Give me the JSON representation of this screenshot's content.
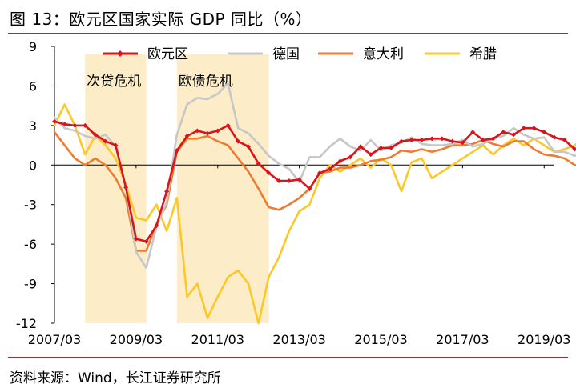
{
  "figure_title": "图 13：欧元区国家实际 GDP 同比（%）",
  "source_note": "资料来源：Wind，长江证券研究所",
  "colors": {
    "rule": "#c9201f",
    "shade": "#fdecc8",
    "eurozone": "#d9141b",
    "germany": "#c7c7c7",
    "italy": "#ee7b30",
    "greece": "#fcc827"
  },
  "chart_data": {
    "type": "line",
    "title": "",
    "xlabel": "",
    "ylabel": "",
    "ylim": [
      -12,
      9
    ],
    "yticks": [
      "9",
      "6",
      "3",
      "0",
      "-3",
      "-6",
      "-9",
      "-12"
    ],
    "xtick_labels": [
      "2007/03",
      "2009/03",
      "2011/03",
      "2013/03",
      "2015/03",
      "2017/03",
      "2019/03"
    ],
    "grid": false,
    "legend_position": "top",
    "shaded_regions": [
      {
        "label": "次贷危机",
        "start": "2007/12",
        "end": "2009/06"
      },
      {
        "label": "欧债危机",
        "start": "2010/03",
        "end": "2012/06"
      }
    ],
    "series": [
      {
        "name": "欧元区",
        "color": "#d9141b",
        "marker": "diamond",
        "start": "2007/03",
        "values": [
          3.3,
          3.1,
          3.0,
          3.0,
          2.3,
          1.8,
          1.5,
          -1.7,
          -5.6,
          -5.8,
          -4.6,
          -2.0,
          1.1,
          2.2,
          2.6,
          2.4,
          2.6,
          3.0,
          1.8,
          1.4,
          0.1,
          -0.6,
          -1.2,
          -1.2,
          -1.1,
          -1.8,
          -0.6,
          -0.3,
          0.3,
          0.6,
          1.4,
          0.8,
          1.3,
          1.3,
          1.8,
          1.9,
          1.9,
          2.0,
          2.0,
          1.8,
          1.7,
          2.5,
          1.9,
          2.0,
          2.5,
          2.3,
          2.8,
          2.8,
          2.5,
          2.1,
          1.9,
          1.2,
          1.2,
          1.5,
          1.4,
          1.5
        ]
      },
      {
        "name": "德国",
        "color": "#c7c7c7",
        "marker": "none",
        "start": "2007/03",
        "values": [
          3.6,
          2.8,
          2.6,
          2.2,
          2.0,
          2.3,
          1.4,
          -1.6,
          -6.6,
          -7.8,
          -4.7,
          -2.8,
          2.3,
          4.6,
          5.1,
          5.0,
          5.4,
          6.2,
          2.8,
          2.4,
          1.6,
          0.7,
          0.1,
          -0.3,
          -1.3,
          0.6,
          0.6,
          1.4,
          2.0,
          1.4,
          1.1,
          1.9,
          1.1,
          1.5,
          1.7,
          2.1,
          1.6,
          1.5,
          1.5,
          1.6,
          1.9,
          1.4,
          1.6,
          2.0,
          2.2,
          2.8,
          2.3,
          2.0,
          2.1,
          1.0,
          1.0,
          0.7,
          0.9,
          0.4,
          0.6,
          0.3
        ]
      },
      {
        "name": "意大利",
        "color": "#ee7b30",
        "marker": "none",
        "start": "2007/03",
        "values": [
          2.5,
          1.5,
          0.5,
          0.0,
          0.5,
          0.0,
          -1.0,
          -2.5,
          -6.5,
          -6.5,
          -4.5,
          -3.0,
          1.0,
          2.0,
          2.0,
          2.2,
          1.8,
          1.5,
          0.5,
          -0.5,
          -1.8,
          -3.2,
          -3.4,
          -3.0,
          -2.5,
          -1.8,
          -0.6,
          -0.5,
          -0.2,
          -0.2,
          0.0,
          0.3,
          0.4,
          0.6,
          1.1,
          1.0,
          1.2,
          1.0,
          1.2,
          1.5,
          1.5,
          1.6,
          1.9,
          1.6,
          1.4,
          1.8,
          1.8,
          1.2,
          0.8,
          0.7,
          0.5,
          0.0,
          0.0,
          0.2,
          0.3,
          0.4
        ]
      },
      {
        "name": "希腊",
        "color": "#fcc827",
        "marker": "none",
        "start": "2007/03",
        "values": [
          3.0,
          4.6,
          3.0,
          0.8,
          2.2,
          1.5,
          0.5,
          -1.5,
          -4.0,
          -4.2,
          -3.0,
          -5.0,
          -2.5,
          -10.0,
          -9.0,
          -11.6,
          -10.0,
          -8.5,
          -8.0,
          -9.0,
          -12.0,
          -8.5,
          -7.0,
          -5.0,
          -3.5,
          -3.0,
          -1.0,
          0.0,
          -0.5,
          0.0,
          0.5,
          -0.2,
          0.5,
          0.0,
          -2.0,
          0.2,
          0.5,
          -1.0,
          -0.5,
          0.0,
          0.5,
          1.0,
          1.5,
          0.8,
          1.5,
          2.0,
          1.5,
          2.0,
          1.5,
          1.0,
          1.2,
          1.5,
          2.0,
          1.5,
          2.0,
          2.5
        ]
      }
    ]
  }
}
